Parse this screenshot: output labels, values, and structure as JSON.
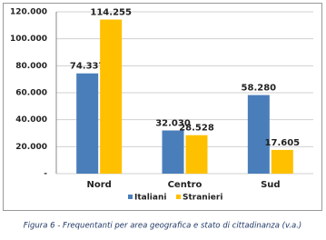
{
  "chart_data": {
    "type": "bar",
    "categories": [
      "Nord",
      "Centro",
      "Sud"
    ],
    "series": [
      {
        "name": "Italiani",
        "color": "#4a7ebb",
        "values": [
          74337,
          32030,
          58280
        ],
        "value_labels": [
          "74.337",
          "32.030",
          "58.280"
        ]
      },
      {
        "name": "Stranieri",
        "color": "#ffc000",
        "values": [
          114255,
          28528,
          17605
        ],
        "value_labels": [
          "114.255",
          "28.528",
          "17.605"
        ]
      }
    ],
    "ylim": [
      0,
      120000
    ],
    "yticks": [
      {
        "value": 0,
        "label": "-"
      },
      {
        "value": 20000,
        "label": "20.000"
      },
      {
        "value": 40000,
        "label": "40.000"
      },
      {
        "value": 60000,
        "label": "60.000"
      },
      {
        "value": 80000,
        "label": "80.000"
      },
      {
        "value": 100000,
        "label": "100.000"
      },
      {
        "value": 120000,
        "label": "120.000"
      }
    ],
    "grid": true,
    "caption": "Figura 6 - Frequentanti per area geografica e stato di cittadinanza (v.a.)"
  }
}
